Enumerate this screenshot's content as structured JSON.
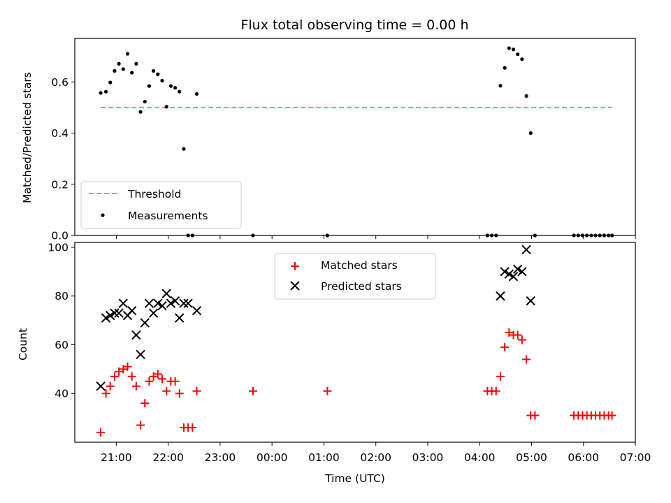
{
  "chart_data": [
    {
      "type": "scatter",
      "title": "Flux total observing time = 0.00 h",
      "xlabel": "",
      "ylabel": "Matched/Predicted stars",
      "ylim": [
        0,
        0.77
      ],
      "yticks": [
        "0.0",
        "0.2",
        "0.4",
        "0.6"
      ],
      "xrange_hours": [
        20.2,
        31.0
      ],
      "grid": false,
      "legend_position": "lower-left",
      "threshold": {
        "name": "Threshold",
        "value": 0.5,
        "x_range": [
          "20:42",
          "06:33"
        ],
        "color": "#f08080",
        "style": "dashed"
      },
      "series": [
        {
          "name": "Measurements",
          "color": "#000000",
          "marker": "dot",
          "x": [
            "20:42",
            "20:48",
            "20:53",
            "20:58",
            "21:03",
            "21:08",
            "21:13",
            "21:18",
            "21:23",
            "21:28",
            "21:33",
            "21:38",
            "21:43",
            "21:48",
            "21:53",
            "21:58",
            "22:03",
            "22:08",
            "22:13",
            "22:18",
            "22:23",
            "22:28",
            "22:33",
            "23:38",
            "01:04",
            "04:09",
            "04:14",
            "04:19",
            "04:24",
            "04:29",
            "04:34",
            "04:39",
            "04:44",
            "04:49",
            "04:54",
            "04:59",
            "05:04",
            "05:49",
            "05:54",
            "05:59",
            "06:04",
            "06:09",
            "06:14",
            "06:19",
            "06:24",
            "06:29",
            "06:33"
          ],
          "y": [
            0.557,
            0.562,
            0.598,
            0.643,
            0.671,
            0.65,
            0.71,
            0.636,
            0.671,
            0.483,
            0.523,
            0.584,
            0.643,
            0.63,
            0.605,
            0.503,
            0.584,
            0.577,
            0.562,
            0.338,
            0.0,
            0.0,
            0.553,
            0.0,
            0.0,
            0.0,
            0.0,
            0.0,
            0.585,
            0.655,
            0.732,
            0.727,
            0.708,
            0.689,
            0.545,
            0.4,
            0.0,
            0.0,
            0.0,
            0.0,
            0.0,
            0.0,
            0.0,
            0.0,
            0.0,
            0.0,
            0.0
          ]
        }
      ]
    },
    {
      "type": "scatter",
      "title": "",
      "xlabel": "Time (UTC)",
      "ylabel": "Count",
      "ylim": [
        20,
        102
      ],
      "yticks": [
        "40",
        "60",
        "80",
        "100"
      ],
      "xticks": [
        "21:00",
        "22:00",
        "23:00",
        "00:00",
        "01:00",
        "02:00",
        "03:00",
        "04:00",
        "05:00",
        "06:00",
        "07:00"
      ],
      "xrange_hours": [
        20.2,
        31.0
      ],
      "grid": false,
      "legend_position": "top-center",
      "series": [
        {
          "name": "Matched stars",
          "color": "#ff0000",
          "marker": "plus",
          "x": [
            "20:42",
            "20:48",
            "20:53",
            "20:58",
            "21:03",
            "21:08",
            "21:13",
            "21:18",
            "21:23",
            "21:28",
            "21:33",
            "21:38",
            "21:43",
            "21:48",
            "21:53",
            "21:58",
            "22:03",
            "22:08",
            "22:13",
            "22:18",
            "22:23",
            "22:28",
            "22:33",
            "23:38",
            "01:04",
            "04:09",
            "04:14",
            "04:19",
            "04:24",
            "04:29",
            "04:34",
            "04:39",
            "04:44",
            "04:49",
            "04:54",
            "04:59",
            "05:04",
            "05:49",
            "05:54",
            "05:59",
            "06:04",
            "06:09",
            "06:14",
            "06:19",
            "06:24",
            "06:29",
            "06:33"
          ],
          "y": [
            24,
            40,
            43,
            47,
            49,
            50,
            51,
            47,
            43,
            27,
            36,
            45,
            47,
            48,
            46,
            41,
            45,
            45,
            40,
            26,
            26,
            26,
            41,
            41,
            41,
            41,
            41,
            41,
            47,
            59,
            65,
            64,
            64,
            62,
            54,
            31,
            31,
            31,
            31,
            31,
            31,
            31,
            31,
            31,
            31,
            31,
            31
          ]
        },
        {
          "name": "Predicted stars",
          "color": "#000000",
          "marker": "x",
          "x": [
            "20:42",
            "20:48",
            "20:53",
            "20:58",
            "21:03",
            "21:08",
            "21:13",
            "21:18",
            "21:23",
            "21:28",
            "21:33",
            "21:38",
            "21:43",
            "21:48",
            "21:53",
            "21:58",
            "22:03",
            "22:08",
            "22:13",
            "22:18",
            "22:23",
            "22:33",
            "04:24",
            "04:29",
            "04:34",
            "04:39",
            "04:44",
            "04:49",
            "04:54",
            "04:59"
          ],
          "y": [
            43,
            71,
            72,
            73,
            73,
            77,
            72,
            74,
            64,
            56,
            69,
            77,
            73,
            77,
            76,
            81,
            77,
            78,
            71,
            77,
            77,
            74,
            80,
            90,
            89,
            88,
            91,
            90,
            99,
            78
          ]
        }
      ]
    }
  ]
}
